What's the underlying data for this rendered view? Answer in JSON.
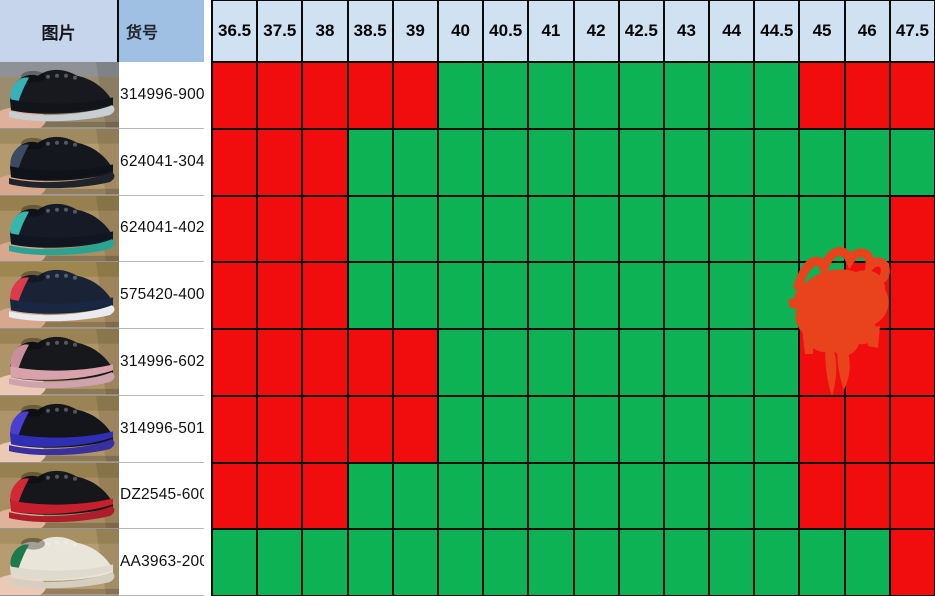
{
  "header": {
    "image_col": "图片",
    "code_col": "货号",
    "sizes": [
      "36.5",
      "37.5",
      "38",
      "38.5",
      "39",
      "40",
      "40.5",
      "41",
      "42",
      "42.5",
      "43",
      "44",
      "44.5",
      "45",
      "46",
      "47.5"
    ]
  },
  "colors": {
    "in_stock_green": "#0DB254",
    "out_of_stock_red": "#F10D0D",
    "size_header_bg": "#D0E1F2",
    "image_header_bg": "#C6D5EC",
    "code_header_bg": "#9FC0E3",
    "grid_line": "#0d0d0d",
    "scribble": "#E9431D"
  },
  "rows": [
    {
      "code": "314996-900",
      "photo_desc": "black-teal-foamposite-shoe-photo",
      "photo": {
        "bg": "#9b8c6d",
        "bgTop": "#8e9296",
        "upper": "#17191e",
        "shell": "#111419",
        "sole": "#c9ced3",
        "accent": "#38b2ba",
        "hand": "#dfb09a"
      },
      "availability": [
        0,
        0,
        0,
        0,
        0,
        1,
        1,
        1,
        1,
        1,
        1,
        1,
        1,
        0,
        0,
        0
      ]
    },
    {
      "code": "624041-304",
      "photo_desc": "dark-navy-foamposite-shoe-photo",
      "photo": {
        "bg": "#b49a6f",
        "bgTop": "#a08a5f",
        "upper": "#15171e",
        "shell": "#0f1218",
        "sole": "#1f232b",
        "accent": "#3c4a63",
        "hand": "#d8a88e"
      },
      "availability": [
        0,
        0,
        0,
        1,
        1,
        1,
        1,
        1,
        1,
        1,
        1,
        1,
        1,
        1,
        1,
        1
      ]
    },
    {
      "code": "624041-402",
      "photo_desc": "navy-jade-foamposite-shoe-photo",
      "photo": {
        "bg": "#ab9065",
        "bgTop": "#96804f",
        "upper": "#151a26",
        "shell": "#101621",
        "sole": "#2aa393",
        "accent": "#37b7ab",
        "hand": "#d8a88e"
      },
      "availability": [
        0,
        0,
        0,
        1,
        1,
        1,
        1,
        1,
        1,
        1,
        1,
        1,
        1,
        1,
        1,
        0
      ]
    },
    {
      "code": "575420-400",
      "photo_desc": "navy-red-white-foamposite-shoe-photo",
      "photo": {
        "bg": "#b09267",
        "bgTop": "#9d874f",
        "upper": "#1a2335",
        "shell": "#192743",
        "sole": "#e9ebee",
        "accent": "#df3a4c",
        "hand": "#d8a88e"
      },
      "availability": [
        0,
        0,
        0,
        1,
        1,
        1,
        1,
        1,
        1,
        1,
        1,
        1,
        1,
        1,
        0,
        0
      ]
    },
    {
      "code": "314996-602",
      "photo_desc": "black-pink-foamposite-shoe-photo",
      "photo": {
        "bg": "#ae9469",
        "bgTop": "#9a8455",
        "upper": "#17181c",
        "shell": "#d8a2ad",
        "sole": "#cfa3ad",
        "accent": "#c98f9c",
        "hand": "#ecc8b6"
      },
      "availability": [
        0,
        0,
        0,
        0,
        0,
        1,
        1,
        1,
        1,
        1,
        1,
        1,
        1,
        0,
        0,
        0
      ]
    },
    {
      "code": "314996-501",
      "photo_desc": "black-royal-blue-foamposite-shoe-photo",
      "photo": {
        "bg": "#ae9469",
        "bgTop": "#9a8455",
        "upper": "#14151b",
        "shell": "#2f2fb5",
        "sole": "#39309f",
        "accent": "#4a3fd0",
        "hand": "#ecc8b6"
      },
      "availability": [
        0,
        0,
        0,
        0,
        0,
        1,
        1,
        1,
        1,
        1,
        1,
        1,
        1,
        0,
        0,
        0
      ]
    },
    {
      "code": "DZ2545-600",
      "photo_desc": "black-red-foamposite-shoe-photo",
      "photo": {
        "bg": "#aa8e63",
        "bgTop": "#968050",
        "upper": "#16171b",
        "shell": "#c81f2e",
        "sole": "#ad1e2a",
        "accent": "#d42836",
        "hand": "#e0b29a"
      },
      "availability": [
        0,
        0,
        0,
        1,
        1,
        1,
        1,
        1,
        1,
        1,
        1,
        1,
        1,
        0,
        0,
        0
      ]
    },
    {
      "code": "AA3963-200",
      "photo_desc": "white-green-shoe-photo",
      "photo": {
        "bg": "#b79c72",
        "bgTop": "#a68f60",
        "upper": "#e9e5da",
        "shell": "#dedacd",
        "sole": "#d4cfc1",
        "accent": "#1e7a4b",
        "hand": "#ecc8b6"
      },
      "availability": [
        1,
        1,
        1,
        1,
        1,
        1,
        1,
        1,
        1,
        1,
        1,
        1,
        1,
        1,
        1,
        0
      ]
    }
  ],
  "annotation": {
    "type": "orange-marker-scribble",
    "covers": "sizes 45-46 of rows 575420-400 and 314996-602"
  }
}
